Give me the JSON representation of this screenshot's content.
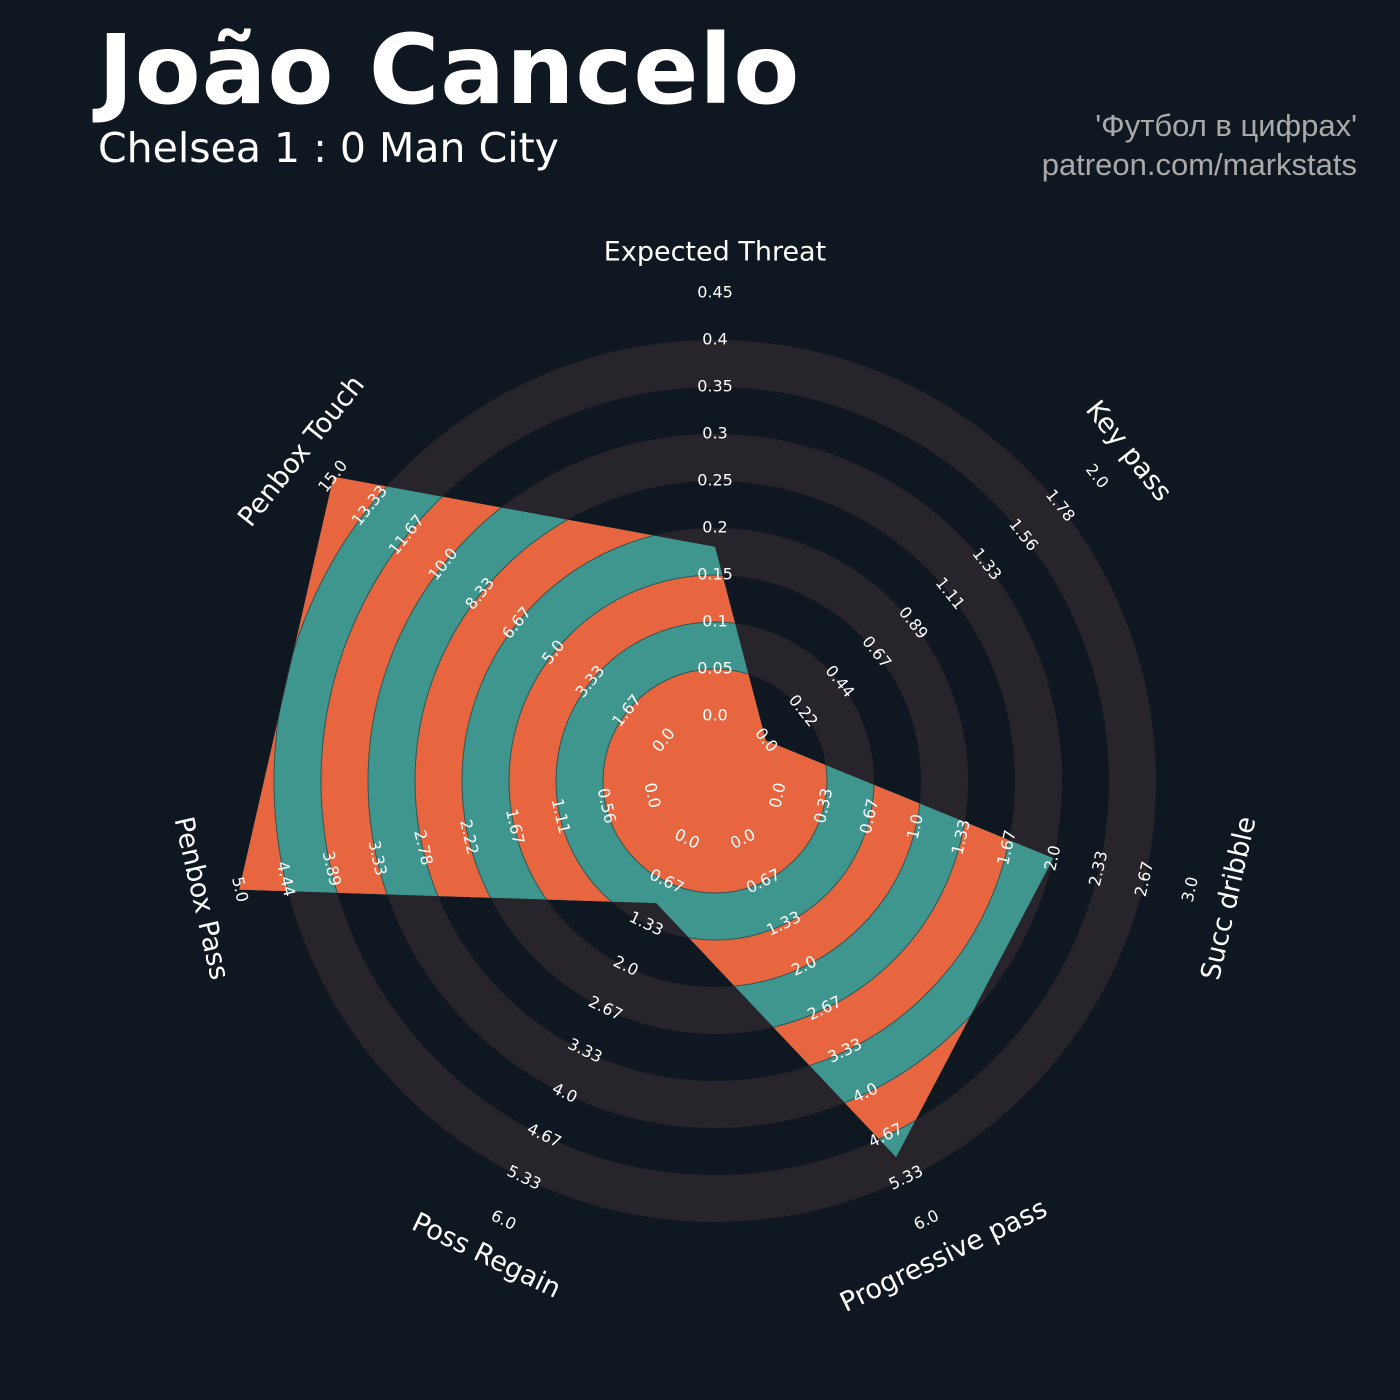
{
  "header": {
    "player_name": "João Cancelo",
    "match": "Chelsea 1 : 0 Man City",
    "credit_line1": "'Футбол в цифрах'",
    "credit_line2": "patreon.com/markstats"
  },
  "colors": {
    "background": "#0f1820",
    "ring_band": "#28242b",
    "fill_teal": "#3e968e",
    "fill_orange": "#e8663f",
    "text": "#ffffff",
    "credit_text": "#a9a9a9"
  },
  "chart_data": {
    "type": "radar",
    "rings": 9,
    "axes": [
      {
        "name": "Expected Threat",
        "value": 0.18,
        "max": 0.45,
        "ticks": [
          "0.0",
          "0.05",
          "0.1",
          "0.15",
          "0.2",
          "0.25",
          "0.3",
          "0.35",
          "0.4",
          "0.45"
        ]
      },
      {
        "name": "Key pass",
        "value": 0,
        "max": 2.0,
        "ticks": [
          "0.0",
          "0.22",
          "0.44",
          "0.67",
          "0.89",
          "1.11",
          "1.33",
          "1.56",
          "1.78",
          "2.0"
        ]
      },
      {
        "name": "Succ dribble",
        "value": 2.0,
        "max": 3.0,
        "ticks": [
          "0.0",
          "0.33",
          "0.67",
          "1.0",
          "1.33",
          "1.67",
          "2.0",
          "2.33",
          "2.67",
          "3.0"
        ]
      },
      {
        "name": "Progressive pass",
        "value": 5.0,
        "max": 6.0,
        "ticks": [
          "0.0",
          "0.67",
          "1.33",
          "2.0",
          "2.67",
          "3.33",
          "4.0",
          "4.67",
          "5.33",
          "6.0"
        ]
      },
      {
        "name": "Poss Regain",
        "value": 1.0,
        "max": 6.0,
        "ticks": [
          "0.0",
          "0.67",
          "1.33",
          "2.0",
          "2.67",
          "3.33",
          "4.0",
          "4.67",
          "5.33",
          "6.0"
        ]
      },
      {
        "name": "Penbox Pass",
        "value": 5.0,
        "max": 5.0,
        "ticks": [
          "0.0",
          "0.56",
          "1.11",
          "1.67",
          "2.22",
          "2.78",
          "3.33",
          "3.89",
          "4.44",
          "5.0"
        ]
      },
      {
        "name": "Penbox Touch",
        "value": 15.0,
        "max": 15.0,
        "ticks": [
          "0.0",
          "1.67",
          "3.33",
          "5.0",
          "6.67",
          "8.33",
          "10.0",
          "11.67",
          "13.33",
          "15.0"
        ]
      }
    ]
  }
}
